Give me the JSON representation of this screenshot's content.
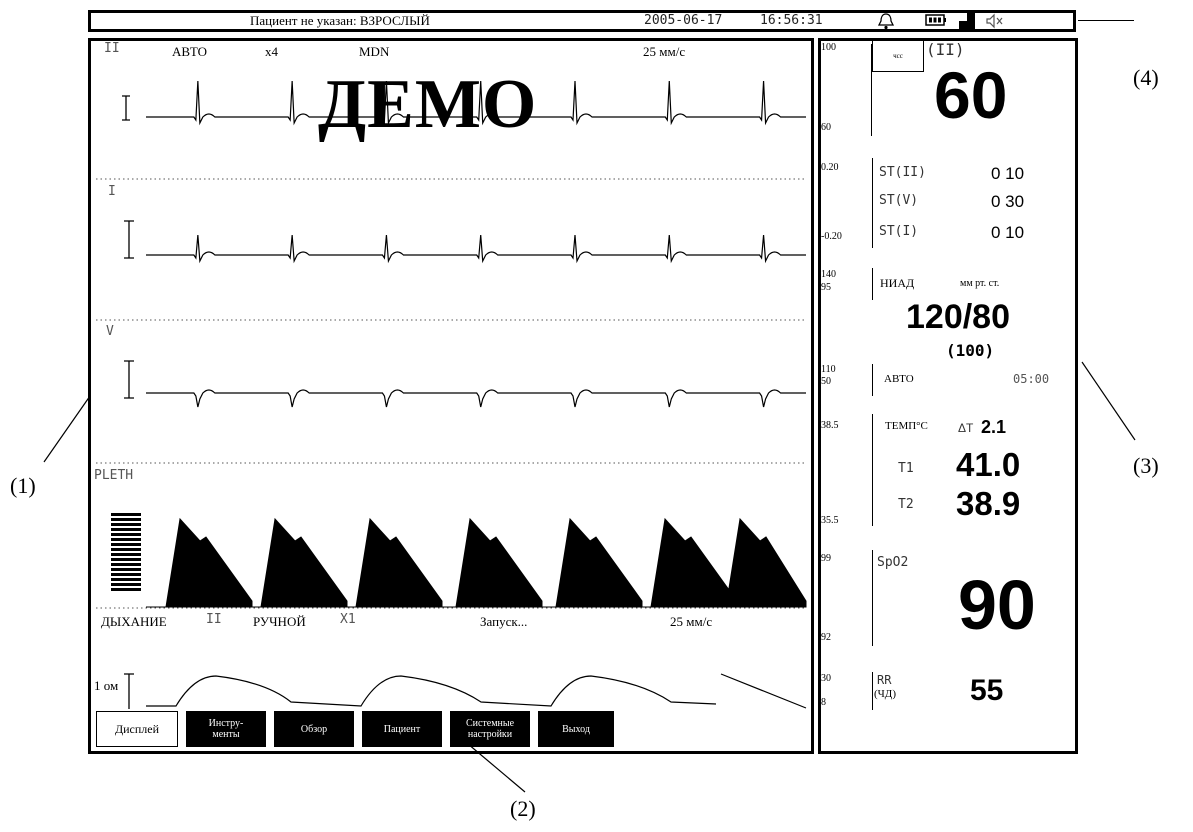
{
  "topbar": {
    "patient": "Пациент не указан: ВЗРОСЛЫЙ",
    "date": "2005-06-17",
    "time": "16:56:31"
  },
  "waves": {
    "ecg1": {
      "lead": "II",
      "mode": "АВТО",
      "gain": "x4",
      "filter": "MDN",
      "speed": "25 мм/с"
    },
    "ecg2": {
      "lead": "I"
    },
    "ecg3": {
      "lead": "V"
    },
    "pleth": {
      "label": "PLETH"
    },
    "resp": {
      "label": "ДЫХАНИЕ",
      "lead": "II",
      "mode": "РУЧНОЙ",
      "gain": "X1",
      "status": "Запуск...",
      "speed": "25 мм/с",
      "scale": "1 ом"
    },
    "watermark": "ДЕМО"
  },
  "menu": {
    "display": "Дисплей",
    "tools": "Инстру-\nменты",
    "review": "Обзор",
    "patient": "Пациент",
    "system": "Системные\nнастройки",
    "exit": "Выход"
  },
  "params": {
    "hr": {
      "scale_hi": "100",
      "scale_lo": "60",
      "box": "чсс",
      "lead": "(II)",
      "value": "60"
    },
    "st": {
      "scale_hi": "0.20",
      "scale_lo": "-0.20",
      "rows": [
        {
          "label": "ST(II)",
          "value": "0 10"
        },
        {
          "label": "ST(V)",
          "value": "0 30"
        },
        {
          "label": "ST(I)",
          "value": "0 10"
        }
      ]
    },
    "nibp": {
      "scale_a": "140",
      "scale_b": "95",
      "scale_c": "110",
      "scale_d": "50",
      "label": "НИАД",
      "unit": "мм рт. ст.",
      "value": "120/80",
      "mean": "(100)",
      "mode": "АВТО",
      "interval": "05:00"
    },
    "temp": {
      "scale_hi": "38.5",
      "scale_lo": "35.5",
      "label": "ТЕМП°C",
      "delta_label": "ΔT",
      "delta": "2.1",
      "t1_label": "T1",
      "t1": "41.0",
      "t2_label": "T2",
      "t2": "38.9"
    },
    "spo2": {
      "scale_hi": "99",
      "scale_lo": "92",
      "label": "SpO2",
      "value": "90"
    },
    "rr": {
      "scale_hi": "30",
      "scale_lo": "8",
      "label": "RR",
      "sublabel": "(ЧД)",
      "value": "55"
    }
  },
  "callouts": {
    "c1": "(1)",
    "c2": "(2)",
    "c3": "(3)",
    "c4": "(4)"
  }
}
